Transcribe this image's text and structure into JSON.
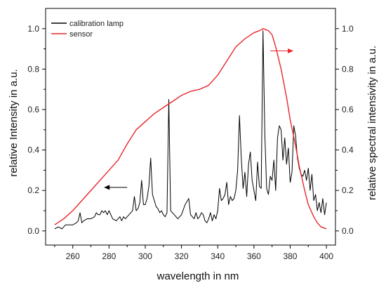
{
  "chart_data": {
    "type": "line",
    "xlabel": "wavelength in nm",
    "ylabel_left": "relative Intensity in a.u.",
    "ylabel_right": "relative spectral intensivity in a.u.",
    "xlim": [
      245,
      405
    ],
    "ylim_left": [
      -0.07,
      1.1
    ],
    "ylim_right": [
      -0.07,
      1.1
    ],
    "x_ticks": [
      260,
      280,
      300,
      320,
      340,
      360,
      380,
      400
    ],
    "y_ticks": [
      0.0,
      0.2,
      0.4,
      0.6,
      0.8,
      1.0
    ],
    "y_tick_labels": [
      "0.0",
      "0.2",
      "0.4",
      "0.6",
      "0.8",
      "1.0"
    ],
    "grid": false,
    "legend_position": "top-left",
    "colors": {
      "calibration": "#000000",
      "sensor": "#e8262b",
      "right_arrow": "#e8262b",
      "left_arrow": "#000000"
    },
    "series": [
      {
        "name": "calibration lamp",
        "axis": "left",
        "x": [
          250,
          252,
          254,
          256,
          258,
          260,
          262,
          263,
          264,
          265,
          266,
          268,
          270,
          272,
          273,
          274,
          275,
          276,
          277,
          278,
          279,
          280,
          282,
          284,
          285,
          286,
          287,
          288,
          289,
          290,
          291,
          292,
          293,
          294,
          295,
          296,
          297,
          298,
          299,
          300,
          301,
          302,
          303,
          304,
          305,
          306,
          307,
          308,
          309,
          310,
          311,
          312,
          313,
          314,
          315,
          316,
          318,
          320,
          322,
          324,
          325,
          326,
          327,
          328,
          329,
          330,
          331,
          332,
          333,
          334,
          335,
          336,
          337,
          338,
          339,
          340,
          341,
          342,
          343,
          344,
          345,
          346,
          347,
          348,
          349,
          350,
          351,
          352,
          353,
          354,
          355,
          356,
          357,
          358,
          359,
          360,
          361,
          362,
          363,
          364,
          365,
          366,
          367,
          368,
          369,
          370,
          371,
          372,
          373,
          374,
          375,
          376,
          377,
          378,
          379,
          380,
          381,
          382,
          383,
          384,
          385,
          386,
          387,
          388,
          389,
          390,
          391,
          392,
          393,
          394,
          395,
          396,
          397,
          398,
          399,
          400
        ],
        "values": [
          0.01,
          0.02,
          0.01,
          0.03,
          0.03,
          0.03,
          0.04,
          0.05,
          0.09,
          0.04,
          0.05,
          0.06,
          0.06,
          0.07,
          0.09,
          0.08,
          0.08,
          0.1,
          0.09,
          0.1,
          0.08,
          0.1,
          0.06,
          0.05,
          0.06,
          0.07,
          0.05,
          0.07,
          0.06,
          0.07,
          0.08,
          0.09,
          0.1,
          0.17,
          0.1,
          0.11,
          0.14,
          0.25,
          0.13,
          0.13,
          0.16,
          0.22,
          0.36,
          0.18,
          0.15,
          0.12,
          0.11,
          0.09,
          0.1,
          0.08,
          0.07,
          0.09,
          0.65,
          0.1,
          0.09,
          0.08,
          0.06,
          0.08,
          0.13,
          0.16,
          0.08,
          0.07,
          0.06,
          0.09,
          0.06,
          0.07,
          0.09,
          0.08,
          0.05,
          0.04,
          0.06,
          0.09,
          0.05,
          0.08,
          0.06,
          0.1,
          0.21,
          0.15,
          0.16,
          0.18,
          0.24,
          0.13,
          0.17,
          0.15,
          0.16,
          0.2,
          0.3,
          0.57,
          0.36,
          0.21,
          0.29,
          0.17,
          0.33,
          0.39,
          0.25,
          0.2,
          0.15,
          0.34,
          0.22,
          0.21,
          0.99,
          0.48,
          0.21,
          0.18,
          0.27,
          0.25,
          0.35,
          0.2,
          0.46,
          0.52,
          0.5,
          0.35,
          0.46,
          0.33,
          0.41,
          0.24,
          0.29,
          0.52,
          0.47,
          0.36,
          0.31,
          0.28,
          0.27,
          0.3,
          0.25,
          0.31,
          0.2,
          0.28,
          0.15,
          0.18,
          0.1,
          0.14,
          0.09,
          0.16,
          0.08,
          0.14
        ]
      },
      {
        "name": "sensor",
        "axis": "right",
        "x": [
          250,
          255,
          260,
          265,
          270,
          275,
          280,
          285,
          290,
          295,
          300,
          305,
          310,
          315,
          320,
          325,
          330,
          335,
          340,
          345,
          350,
          355,
          360,
          363,
          365,
          368,
          370,
          372,
          375,
          378,
          380,
          383,
          385,
          388,
          390,
          393,
          395,
          397,
          400
        ],
        "values": [
          0.03,
          0.06,
          0.1,
          0.15,
          0.2,
          0.25,
          0.3,
          0.35,
          0.43,
          0.5,
          0.54,
          0.58,
          0.61,
          0.64,
          0.67,
          0.69,
          0.7,
          0.72,
          0.77,
          0.84,
          0.91,
          0.95,
          0.98,
          0.99,
          1.0,
          0.99,
          0.97,
          0.91,
          0.8,
          0.66,
          0.55,
          0.42,
          0.32,
          0.2,
          0.13,
          0.07,
          0.04,
          0.02,
          0.01
        ]
      }
    ],
    "annotations": [
      {
        "type": "arrow",
        "direction": "right",
        "axis": "right",
        "x_from": 369,
        "x_to": 381,
        "y": 0.89
      },
      {
        "type": "arrow",
        "direction": "left",
        "axis": "left",
        "x_from": 290,
        "x_to": 278,
        "y": 0.215
      }
    ]
  }
}
